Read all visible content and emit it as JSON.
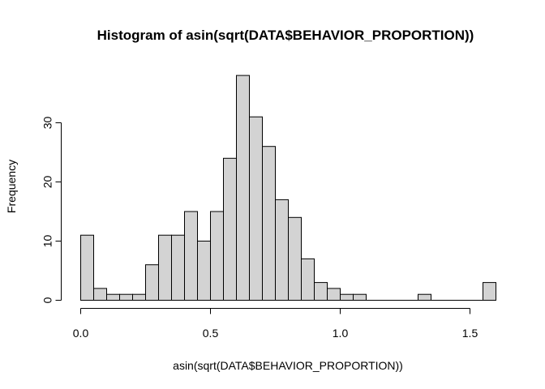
{
  "chart_data": {
    "type": "bar",
    "title": "Histogram of asin(sqrt(DATA$BEHAVIOR_PROPORTION))",
    "xlabel": "asin(sqrt(DATA$BEHAVIOR_PROPORTION))",
    "ylabel": "Frequency",
    "bin_width": 0.05,
    "bins_start": 0.0,
    "values": [
      11,
      2,
      1,
      1,
      1,
      6,
      11,
      11,
      15,
      10,
      15,
      24,
      38,
      31,
      26,
      17,
      14,
      7,
      3,
      2,
      1,
      1,
      0,
      0,
      0,
      0,
      1,
      0,
      0,
      0,
      0,
      3
    ],
    "xlim": [
      0,
      1.6
    ],
    "ylim": [
      0,
      38
    ],
    "x_ticks": [
      0.0,
      0.5,
      1.0,
      1.5
    ],
    "x_tick_labels": [
      "0.0",
      "0.5",
      "1.0",
      "1.5"
    ],
    "y_ticks": [
      0,
      10,
      20,
      30
    ],
    "y_tick_labels": [
      "0",
      "10",
      "20",
      "30"
    ],
    "bar_fill": "#d3d3d3",
    "bar_stroke": "#000000",
    "grid": false
  }
}
